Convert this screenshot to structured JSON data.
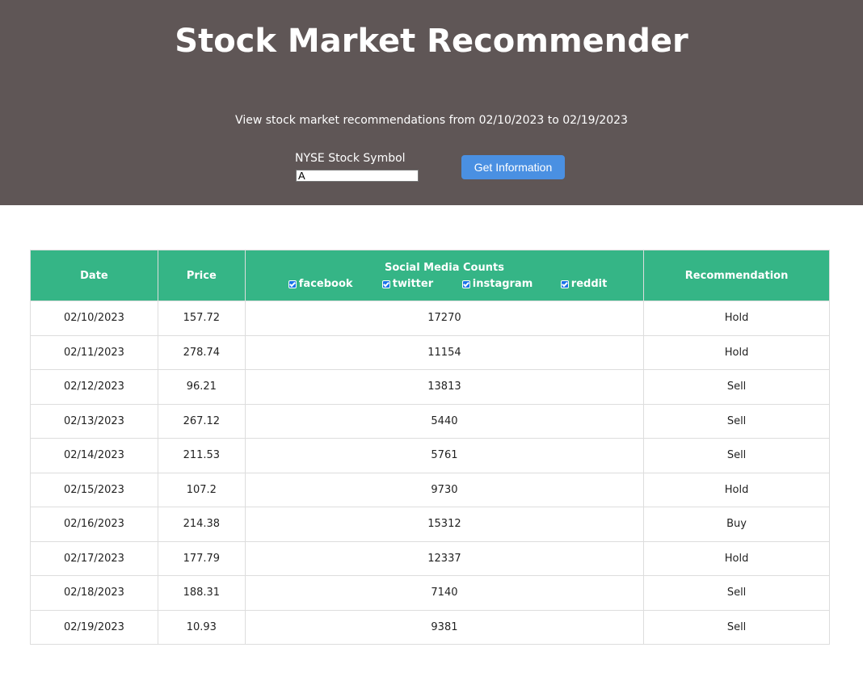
{
  "header": {
    "title": "Stock Market Recommender",
    "subtitle": "View stock market recommendations from 02/10/2023 to 02/19/2023",
    "symbol_label": "NYSE Stock Symbol",
    "symbol_value": "A",
    "button_label": "Get Information",
    "background_color": "#5f5656",
    "button_color": "#4a90e2"
  },
  "table": {
    "header_color": "#35b586",
    "columns": {
      "date": "Date",
      "price": "Price",
      "social": "Social Media Counts",
      "recommendation": "Recommendation"
    },
    "social_filters": [
      {
        "label": "facebook",
        "checked": true
      },
      {
        "label": "twitter",
        "checked": true
      },
      {
        "label": "instagram",
        "checked": true
      },
      {
        "label": "reddit",
        "checked": true
      }
    ],
    "rows": [
      {
        "date": "02/10/2023",
        "price": "157.72",
        "count": "17270",
        "rec": "Hold"
      },
      {
        "date": "02/11/2023",
        "price": "278.74",
        "count": "11154",
        "rec": "Hold"
      },
      {
        "date": "02/12/2023",
        "price": "96.21",
        "count": "13813",
        "rec": "Sell"
      },
      {
        "date": "02/13/2023",
        "price": "267.12",
        "count": "5440",
        "rec": "Sell"
      },
      {
        "date": "02/14/2023",
        "price": "211.53",
        "count": "5761",
        "rec": "Sell"
      },
      {
        "date": "02/15/2023",
        "price": "107.2",
        "count": "9730",
        "rec": "Hold"
      },
      {
        "date": "02/16/2023",
        "price": "214.38",
        "count": "15312",
        "rec": "Buy"
      },
      {
        "date": "02/17/2023",
        "price": "177.79",
        "count": "12337",
        "rec": "Hold"
      },
      {
        "date": "02/18/2023",
        "price": "188.31",
        "count": "7140",
        "rec": "Sell"
      },
      {
        "date": "02/19/2023",
        "price": "10.93",
        "count": "9381",
        "rec": "Sell"
      }
    ]
  }
}
